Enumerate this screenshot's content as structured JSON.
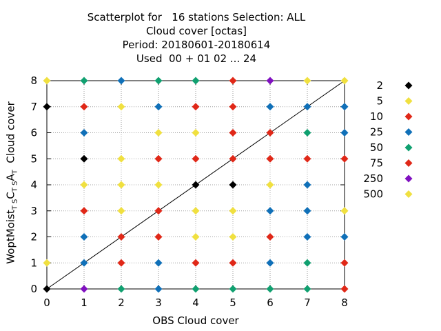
{
  "chart_data": {
    "type": "scatter",
    "title_lines": [
      "Scatterplot for   16 stations Selection: ALL",
      "Cloud cover [octas]",
      "Period: 20180601-20180614",
      "Used  00 + 01 02 ... 24"
    ],
    "xlabel": "OBS Cloud cover",
    "ylabel": {
      "prefix": "WoptMoist",
      "sub1": "T S",
      "mid": "C",
      "sub2": "T S",
      "mid2": "A",
      "sub3": "T",
      "suffix": "  Cloud cover"
    },
    "xlim": [
      0,
      8
    ],
    "ylim": [
      0,
      8
    ],
    "xticks": [
      "0",
      "1",
      "2",
      "3",
      "4",
      "5",
      "6",
      "7",
      "8"
    ],
    "yticks": [
      "0",
      "1",
      "2",
      "3",
      "4",
      "5",
      "6",
      "7",
      "8"
    ],
    "grid": true,
    "diagonal": true,
    "legend_placement": "right",
    "legend": [
      {
        "label": "2",
        "color": "#000000"
      },
      {
        "label": "5",
        "color": "#f0e040"
      },
      {
        "label": "10",
        "color": "#e02818"
      },
      {
        "label": "25",
        "color": "#1070b8"
      },
      {
        "label": "50",
        "color": "#10a070"
      },
      {
        "label": "75",
        "color": "#e02818"
      },
      {
        "label": "250",
        "color": "#8010c0"
      },
      {
        "label": "500",
        "color": "#f0e040"
      }
    ],
    "points": [
      [
        0,
        8,
        "#f0e040"
      ],
      [
        1,
        8,
        "#10a070"
      ],
      [
        2,
        8,
        "#1070b8"
      ],
      [
        3,
        8,
        "#10a070"
      ],
      [
        4,
        8,
        "#10a070"
      ],
      [
        5,
        8,
        "#e02818"
      ],
      [
        6,
        8,
        "#8010c0"
      ],
      [
        7,
        8,
        "#f0e040"
      ],
      [
        8,
        8,
        "#f0e040"
      ],
      [
        0,
        7,
        "#000000"
      ],
      [
        1,
        7,
        "#e02818"
      ],
      [
        2,
        7,
        "#f0e040"
      ],
      [
        3,
        7,
        "#1070b8"
      ],
      [
        4,
        7,
        "#e02818"
      ],
      [
        5,
        7,
        "#e02818"
      ],
      [
        6,
        7,
        "#1070b8"
      ],
      [
        7,
        7,
        "#1070b8"
      ],
      [
        8,
        7,
        "#1070b8"
      ],
      [
        1,
        6,
        "#1070b8"
      ],
      [
        3,
        6,
        "#f0e040"
      ],
      [
        4,
        6,
        "#f0e040"
      ],
      [
        5,
        6,
        "#e02818"
      ],
      [
        6,
        6,
        "#e02818"
      ],
      [
        7,
        6,
        "#10a070"
      ],
      [
        8,
        6,
        "#1070b8"
      ],
      [
        1,
        5,
        "#000000"
      ],
      [
        2,
        5,
        "#f0e040"
      ],
      [
        3,
        5,
        "#e02818"
      ],
      [
        4,
        5,
        "#e02818"
      ],
      [
        5,
        5,
        "#e02818"
      ],
      [
        6,
        5,
        "#e02818"
      ],
      [
        7,
        5,
        "#e02818"
      ],
      [
        8,
        5,
        "#e02818"
      ],
      [
        1,
        4,
        "#f0e040"
      ],
      [
        2,
        4,
        "#f0e040"
      ],
      [
        3,
        4,
        "#f0e040"
      ],
      [
        4,
        4,
        "#000000"
      ],
      [
        5,
        4,
        "#000000"
      ],
      [
        6,
        4,
        "#f0e040"
      ],
      [
        7,
        4,
        "#1070b8"
      ],
      [
        1,
        3,
        "#e02818"
      ],
      [
        2,
        3,
        "#f0e040"
      ],
      [
        3,
        3,
        "#e02818"
      ],
      [
        4,
        3,
        "#f0e040"
      ],
      [
        5,
        3,
        "#f0e040"
      ],
      [
        6,
        3,
        "#1070b8"
      ],
      [
        7,
        3,
        "#1070b8"
      ],
      [
        8,
        3,
        "#f0e040"
      ],
      [
        1,
        2,
        "#1070b8"
      ],
      [
        2,
        2,
        "#e02818"
      ],
      [
        3,
        2,
        "#e02818"
      ],
      [
        4,
        2,
        "#f0e040"
      ],
      [
        5,
        2,
        "#f0e040"
      ],
      [
        6,
        2,
        "#e02818"
      ],
      [
        7,
        2,
        "#1070b8"
      ],
      [
        8,
        2,
        "#1070b8"
      ],
      [
        0,
        1,
        "#f0e040"
      ],
      [
        1,
        1,
        "#1070b8"
      ],
      [
        2,
        1,
        "#e02818"
      ],
      [
        3,
        1,
        "#1070b8"
      ],
      [
        4,
        1,
        "#e02818"
      ],
      [
        5,
        1,
        "#e02818"
      ],
      [
        6,
        1,
        "#1070b8"
      ],
      [
        7,
        1,
        "#10a070"
      ],
      [
        8,
        1,
        "#e02818"
      ],
      [
        0,
        0,
        "#000000"
      ],
      [
        1,
        0,
        "#8010c0"
      ],
      [
        2,
        0,
        "#10a070"
      ],
      [
        3,
        0,
        "#1070b8"
      ],
      [
        4,
        0,
        "#10a070"
      ],
      [
        5,
        0,
        "#10a070"
      ],
      [
        6,
        0,
        "#10a070"
      ],
      [
        7,
        0,
        "#10a070"
      ],
      [
        8,
        0,
        "#e02818"
      ]
    ]
  }
}
